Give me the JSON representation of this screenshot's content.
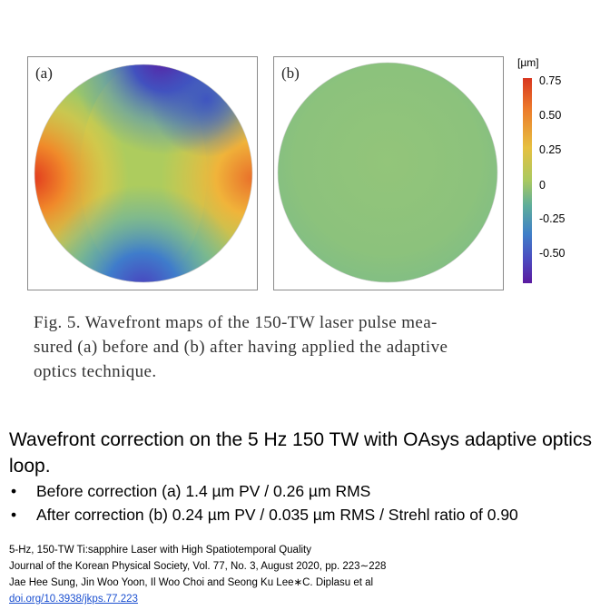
{
  "figure": {
    "panel_a_label": "(a)",
    "panel_b_label": "(b)",
    "colorbar": {
      "unit": "[µm]",
      "ticks": [
        "0.75",
        "0.50",
        "0.25",
        "0",
        "-0.25",
        "-0.50"
      ],
      "colors": [
        "#d8361f",
        "#ec7a2b",
        "#e6c040",
        "#a9c960",
        "#5fae9a",
        "#3f7fc8",
        "#4b4cc0",
        "#5a1aa0"
      ]
    },
    "caption_lines": [
      "Fig. 5.  Wavefront maps of the 150-TW laser pulse mea-",
      "sured (a) before and (b) after having applied the adaptive",
      "optics technique."
    ]
  },
  "headline": "Wavefront correction on the 5 Hz 150 TW with OAsys adaptive optics loop.",
  "bullets": [
    "Before correction (a) 1.4 µm PV / 0.26 µm RMS",
    "After correction (b) 0.24 µm PV / 0.035 µm RMS / Strehl ratio of 0.90"
  ],
  "bullet_symbol": "•",
  "reference": {
    "line1": "5-Hz, 150-TW Ti:sapphire Laser with High Spatiotemporal Quality",
    "line2": "Journal of the Korean Physical Society, Vol. 77, No. 3, August 2020,  pp. 223∼228",
    "line3": "Jae Hee Sung, Jin Woo Yoon, Il Woo Choi and Seong Ku Lee∗C. Diplasu et al",
    "doi": "doi.org/10.3938/jkps.77.223"
  }
}
